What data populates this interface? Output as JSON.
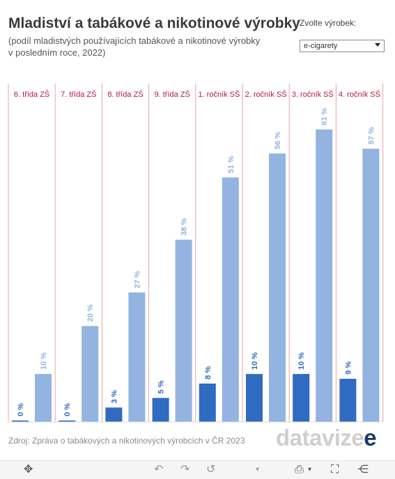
{
  "title": "Mladiství a tabákové a nikotinové výrobky",
  "subtitle": "(podíl mladistvých používajících tabákové a nikotinové výrobky\n v posledním roce, 2022)",
  "selector": {
    "label": "Zvolte výrobek:",
    "value": "e-cigarety"
  },
  "source": "Zdroj: Zpráva o tabákových a nikotinových výrobcích v ČR 2023",
  "logo": {
    "text": "datavize",
    "main": "datavize",
    "accent": "e"
  },
  "colors": {
    "dark_series": "#2f6bc1",
    "light_series": "#93b4e0",
    "header": "#b5163b",
    "divider": "#e8a6a6"
  },
  "chart_data": {
    "type": "bar",
    "categories": [
      "6. třída ZŠ",
      "7. třída ZŠ",
      "8. třída ZŠ",
      "9. třída ZŠ",
      "1. ročník SŠ",
      "2. ročník SŠ",
      "3. ročník SŠ",
      "4. ročník SŠ"
    ],
    "series": [
      {
        "values": [
          0,
          0,
          3,
          5,
          8,
          10,
          10,
          9
        ],
        "labels": [
          "0 %",
          "0 %",
          "3 %",
          "5 %",
          "8 %",
          "10 %",
          "10 %",
          "9 %"
        ],
        "color": "#2f6bc1"
      },
      {
        "values": [
          10,
          20,
          27,
          38,
          51,
          56,
          61,
          57
        ],
        "labels": [
          "10 %",
          "20 %",
          "27 %",
          "38 %",
          "51 %",
          "56 %",
          "61 %",
          "57 %"
        ],
        "color": "#93b4e0"
      }
    ],
    "ylim": [
      0,
      61
    ]
  },
  "toolbar": {
    "icons": [
      "move-icon",
      "undo-icon",
      "redo-icon",
      "revert-icon",
      "download-icon",
      "fullscreen-icon",
      "share-icon"
    ]
  }
}
